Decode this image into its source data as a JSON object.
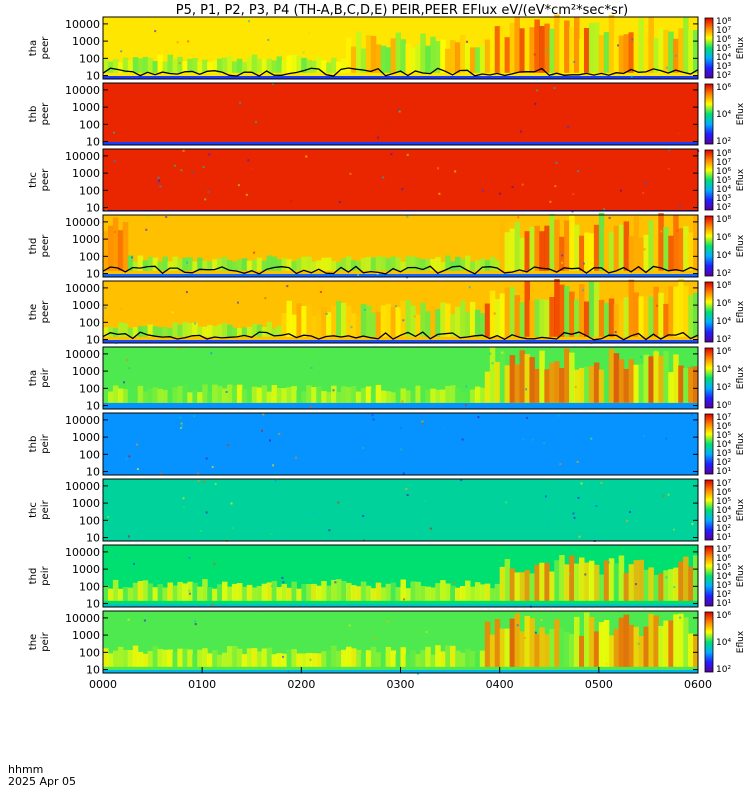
{
  "chart_data": {
    "type": "heatmap",
    "title": "P5, P1, P2, P3, P4 (TH-A,B,C,D,E) PEIR,PEER EFlux eV/(eV*cm²*sec*sr)",
    "colorbar_label": "Eflux",
    "x_ticks": [
      "0000",
      "0100",
      "0200",
      "0300",
      "0400",
      "0500",
      "0600"
    ],
    "x_range_hhmm": [
      "0000",
      "0600"
    ],
    "footer_label": "hhmm",
    "footer_date": "2025 Apr 05",
    "panels": [
      {
        "ylabel1": "tha",
        "ylabel2": "peer",
        "yticks": [
          "10",
          "100",
          "1000",
          "10000"
        ],
        "cbar_ticks": [
          "10²",
          "10³",
          "10⁴",
          "10⁵",
          "10⁶",
          "10⁷",
          "10⁸"
        ],
        "profile": [
          [
            0.05,
            0.7
          ],
          [
            0.35,
            0.55
          ],
          [
            0.6,
            0.35
          ],
          [
            0.9,
            0.2
          ]
        ],
        "segments": [
          {
            "start_hhmm": "0000",
            "end_hhmm": "0225",
            "fill": 0.3
          },
          {
            "start_hhmm": "0225",
            "end_hhmm": "0350",
            "fill": 0.7
          },
          {
            "start_hhmm": "0350",
            "end_hhmm": "0600",
            "fill": 0.95
          }
        ],
        "noise": 0.1,
        "has_sc_potential_line": true
      },
      {
        "ylabel1": "thb",
        "ylabel2": "peer",
        "yticks": [
          "10",
          "100",
          "1000",
          "10000"
        ],
        "cbar_ticks": [
          "10²",
          "10⁴",
          "10⁶"
        ],
        "profile": [
          [
            0.05,
            0.95
          ],
          [
            0.2,
            0.9
          ],
          [
            0.4,
            0.7
          ],
          [
            0.6,
            0.45
          ],
          [
            0.8,
            0.3
          ],
          [
            1.0,
            0.2
          ]
        ],
        "segments": [],
        "noise": 0.06,
        "has_sc_potential_line": false
      },
      {
        "ylabel1": "thc",
        "ylabel2": "peer",
        "yticks": [
          "10",
          "100",
          "1000",
          "10000"
        ],
        "cbar_ticks": [
          "10²",
          "10³",
          "10⁴",
          "10⁵",
          "10⁶",
          "10⁷",
          "10⁸"
        ],
        "profile": [
          [
            0.02,
            0.95
          ],
          [
            0.15,
            0.9
          ],
          [
            0.28,
            0.55
          ],
          [
            0.4,
            0.75
          ],
          [
            0.55,
            0.3
          ],
          [
            0.7,
            0.18
          ],
          [
            0.85,
            0.12
          ],
          [
            1.0,
            0.1
          ]
        ],
        "segments": [],
        "noise": 0.22,
        "has_sc_potential_line": false
      },
      {
        "ylabel1": "thd",
        "ylabel2": "peer",
        "yticks": [
          "10",
          "100",
          "1000",
          "10000"
        ],
        "cbar_ticks": [
          "10²",
          "10⁴",
          "10⁶",
          "10⁸"
        ],
        "profile": [
          [
            0.05,
            0.75
          ],
          [
            0.35,
            0.55
          ],
          [
            0.6,
            0.4
          ],
          [
            0.9,
            0.25
          ]
        ],
        "segments": [
          {
            "start_hhmm": "0000",
            "end_hhmm": "0015",
            "fill": 0.9
          },
          {
            "start_hhmm": "0015",
            "end_hhmm": "0400",
            "fill": 0.25
          },
          {
            "start_hhmm": "0400",
            "end_hhmm": "0600",
            "fill": 0.95
          }
        ],
        "noise": 0.1,
        "has_sc_potential_line": true
      },
      {
        "ylabel1": "the",
        "ylabel2": "peer",
        "yticks": [
          "10",
          "100",
          "1000",
          "10000"
        ],
        "cbar_ticks": [
          "10²",
          "10⁴",
          "10⁶",
          "10⁸"
        ],
        "profile": [
          [
            0.05,
            0.75
          ],
          [
            0.35,
            0.55
          ],
          [
            0.6,
            0.35
          ],
          [
            0.9,
            0.22
          ]
        ],
        "segments": [
          {
            "start_hhmm": "0000",
            "end_hhmm": "0145",
            "fill": 0.25
          },
          {
            "start_hhmm": "0145",
            "end_hhmm": "0350",
            "fill": 0.6
          },
          {
            "start_hhmm": "0350",
            "end_hhmm": "0600",
            "fill": 0.95
          }
        ],
        "noise": 0.1,
        "has_sc_potential_line": true
      },
      {
        "ylabel1": "tha",
        "ylabel2": "peir",
        "yticks": [
          "10",
          "100",
          "1000",
          "10000"
        ],
        "cbar_ticks": [
          "10⁰",
          "10²",
          "10⁴",
          "10⁶"
        ],
        "profile": [
          [
            0.1,
            0.55
          ],
          [
            0.45,
            0.75
          ],
          [
            0.8,
            0.5
          ],
          [
            1.0,
            0.3
          ]
        ],
        "segments": [
          {
            "start_hhmm": "0000",
            "end_hhmm": "0350",
            "fill": 0.3
          },
          {
            "start_hhmm": "0350",
            "end_hhmm": "0600",
            "fill": 0.9
          }
        ],
        "noise": 0.1,
        "has_sc_potential_line": false
      },
      {
        "ylabel1": "thb",
        "ylabel2": "peir",
        "yticks": [
          "10",
          "100",
          "1000",
          "10000"
        ],
        "cbar_ticks": [
          "10¹",
          "10²",
          "10³",
          "10⁴",
          "10⁵",
          "10⁶",
          "10⁷"
        ],
        "profile": [
          [
            0.0,
            0.3
          ],
          [
            0.1,
            0.55
          ],
          [
            0.2,
            0.95
          ],
          [
            0.3,
            0.55
          ],
          [
            0.45,
            0.2
          ],
          [
            0.7,
            0.15
          ],
          [
            1.0,
            0.1
          ]
        ],
        "segments": [],
        "noise": 0.2,
        "has_sc_potential_line": false
      },
      {
        "ylabel1": "thc",
        "ylabel2": "peir",
        "yticks": [
          "10",
          "100",
          "1000",
          "10000"
        ],
        "cbar_ticks": [
          "10¹",
          "10²",
          "10³",
          "10⁴",
          "10⁵",
          "10⁶",
          "10⁷"
        ],
        "profile": [
          [
            0.0,
            0.45
          ],
          [
            0.12,
            0.65
          ],
          [
            0.22,
            0.9
          ],
          [
            0.32,
            0.6
          ],
          [
            0.42,
            0.35
          ],
          [
            0.65,
            0.2
          ],
          [
            1.0,
            0.12
          ]
        ],
        "segments": [],
        "noise": 0.22,
        "has_sc_potential_line": false
      },
      {
        "ylabel1": "thd",
        "ylabel2": "peir",
        "yticks": [
          "10",
          "100",
          "1000",
          "10000"
        ],
        "cbar_ticks": [
          "10¹",
          "10²",
          "10³",
          "10⁴",
          "10⁵",
          "10⁶",
          "10⁷"
        ],
        "profile": [
          [
            0.05,
            0.5
          ],
          [
            0.45,
            0.75
          ],
          [
            0.8,
            0.55
          ],
          [
            1.0,
            0.4
          ]
        ],
        "segments": [
          {
            "start_hhmm": "0000",
            "end_hhmm": "0400",
            "fill": 0.35
          },
          {
            "start_hhmm": "0400",
            "end_hhmm": "0600",
            "fill": 0.75
          }
        ],
        "noise": 0.1,
        "has_sc_potential_line": false
      },
      {
        "ylabel1": "the",
        "ylabel2": "peir",
        "yticks": [
          "10",
          "100",
          "1000",
          "10000"
        ],
        "cbar_ticks": [
          "10²",
          "10⁴",
          "10⁶"
        ],
        "profile": [
          [
            0.05,
            0.55
          ],
          [
            0.45,
            0.75
          ],
          [
            0.8,
            0.55
          ],
          [
            1.0,
            0.35
          ]
        ],
        "segments": [
          {
            "start_hhmm": "0000",
            "end_hhmm": "0350",
            "fill": 0.35
          },
          {
            "start_hhmm": "0350",
            "end_hhmm": "0600",
            "fill": 0.9
          }
        ],
        "noise": 0.1,
        "has_sc_potential_line": false
      }
    ]
  }
}
